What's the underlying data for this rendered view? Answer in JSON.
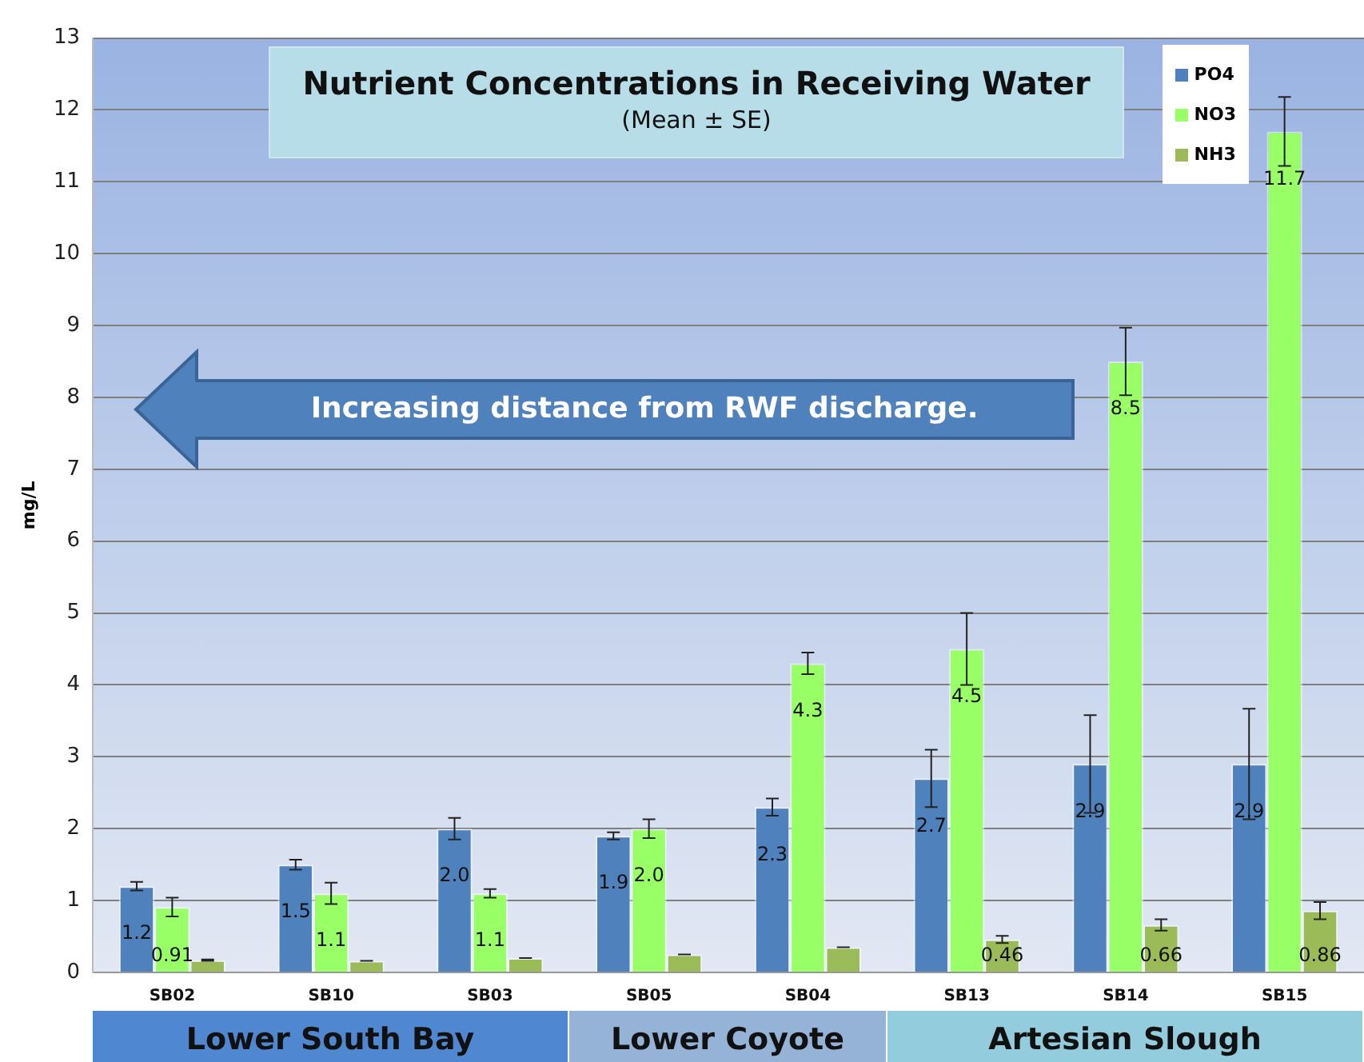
{
  "chart_data": {
    "type": "bar",
    "title": "Nutrient Concentrations in Receiving Water",
    "subtitle": "(Mean ± SE)",
    "ylabel": "mg/L",
    "categories": [
      "SB02",
      "SB10",
      "SB03",
      "SB05",
      "SB04",
      "SB13",
      "SB14",
      "SB15"
    ],
    "series": [
      {
        "name": "PO4",
        "color": "#4f81bd",
        "values": [
          1.2,
          1.5,
          2.0,
          1.9,
          2.3,
          2.7,
          2.9,
          2.9
        ],
        "errors": [
          0.06,
          0.07,
          0.15,
          0.05,
          0.12,
          0.4,
          0.68,
          0.77
        ],
        "value_labels": [
          "1.2",
          "1.5",
          "2.0",
          "1.9",
          "2.3",
          "2.7",
          "2.9",
          "2.9"
        ]
      },
      {
        "name": "NO3",
        "color": "#99ff66",
        "values": [
          0.91,
          1.1,
          1.1,
          2.0,
          4.3,
          4.5,
          8.5,
          11.7
        ],
        "errors": [
          0.13,
          0.15,
          0.06,
          0.13,
          0.15,
          0.5,
          0.47,
          0.48
        ],
        "value_labels": [
          "0.91",
          "1.1",
          "1.1",
          "2.0",
          "4.3",
          "4.5",
          "8.5",
          "11.7"
        ]
      },
      {
        "name": "NH3",
        "color": "#9bbb59",
        "values": [
          0.17,
          0.16,
          0.2,
          0.25,
          0.35,
          0.46,
          0.66,
          0.86
        ],
        "errors": [
          0.01,
          0,
          0,
          0,
          0,
          0.05,
          0.08,
          0.12
        ],
        "value_labels": [
          null,
          null,
          null,
          null,
          null,
          "0.46",
          "0.66",
          "0.86"
        ]
      }
    ],
    "ylim": [
      0,
      13
    ],
    "yticks": [
      0,
      1,
      2,
      3,
      4,
      5,
      6,
      7,
      8,
      9,
      10,
      11,
      12,
      13
    ],
    "grid": "y",
    "legend": "top right",
    "annotations": [
      "Increasing distance from RWF discharge.",
      "Lower South Bay",
      "Lower Coyote",
      "Artesian Slough"
    ]
  }
}
